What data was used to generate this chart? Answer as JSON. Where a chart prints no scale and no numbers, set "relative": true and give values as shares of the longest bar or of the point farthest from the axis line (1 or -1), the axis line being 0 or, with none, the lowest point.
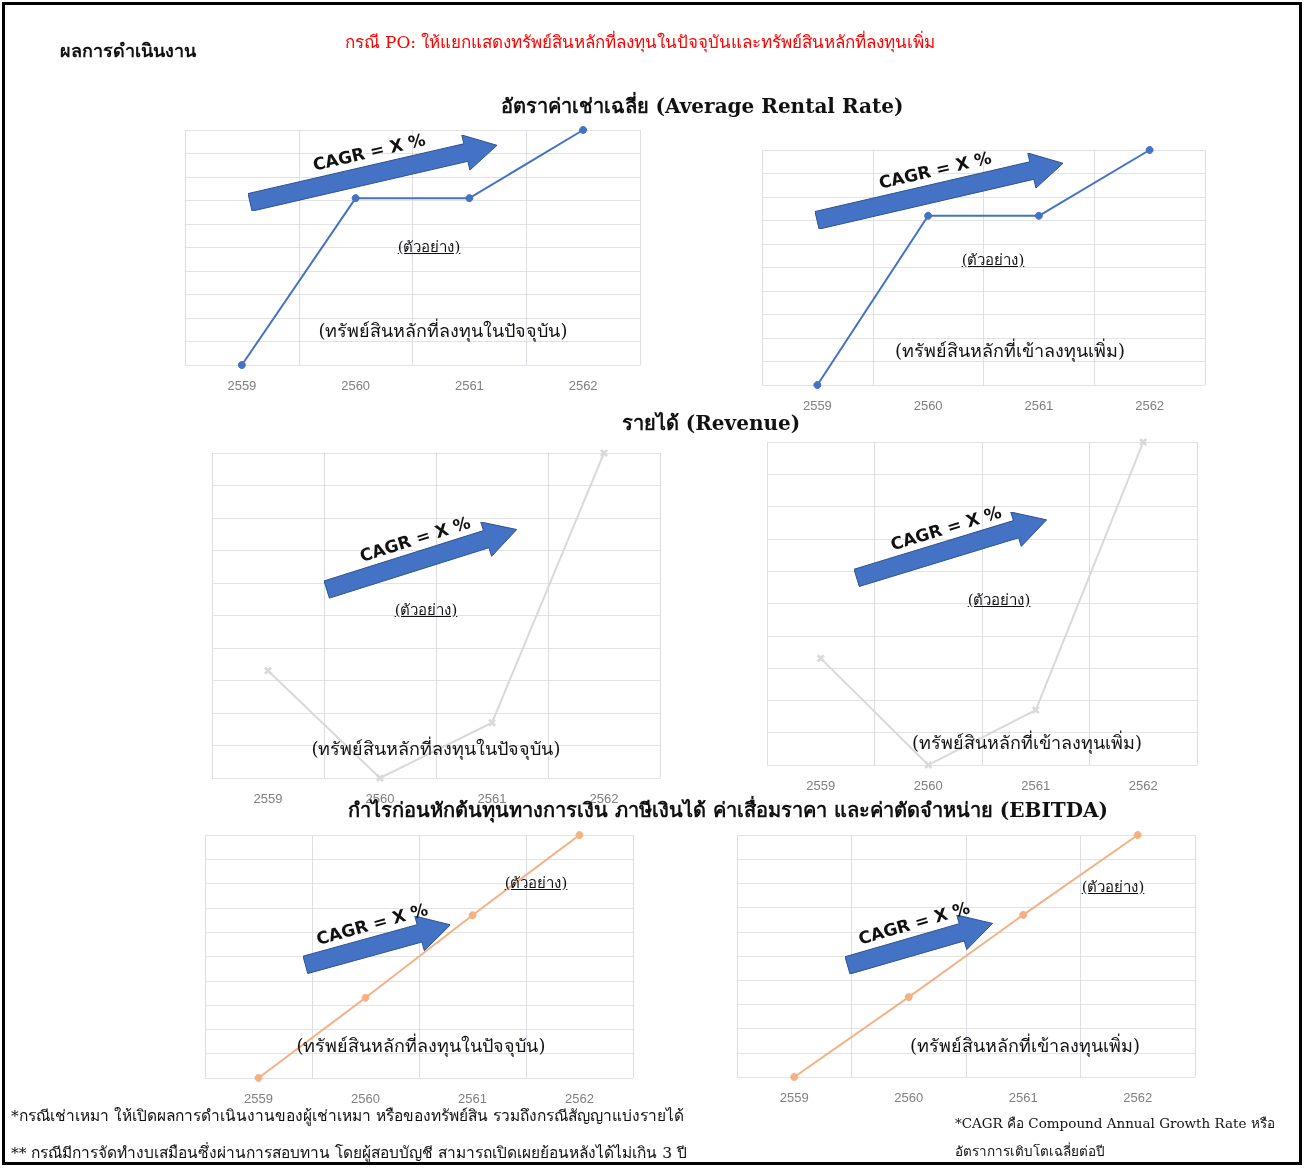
{
  "chart_data": [
    {
      "type": "line",
      "title": "อัตราค่าเช่าเฉลี่ย (Average Rental Rate)",
      "categories": [
        "2559",
        "2560",
        "2561",
        "2562"
      ],
      "relative": true,
      "grid": true,
      "marker": "circle",
      "series": [
        {
          "color": "#4472c4",
          "values": [
            0,
            0.71,
            0.71,
            1
          ]
        }
      ],
      "annotations": [
        "CAGR = X %",
        "(ตัวอย่าง)",
        "(ทรัพย์สินหลักที่ลงทุนในปัจจุบัน)",
        "ผลการดำเนินงาน",
        "กรณี PO: ให้แยกแสดงทรัพย์สินหลักที่ลงทุนในปัจจุบันและทรัพย์สินหลักที่ลงทุนเพิ่ม"
      ]
    },
    {
      "type": "line",
      "categories": [
        "2559",
        "2560",
        "2561",
        "2562"
      ],
      "relative": true,
      "grid": true,
      "marker": "circle",
      "series": [
        {
          "color": "#4472c4",
          "values": [
            0,
            0.72,
            0.72,
            1
          ]
        }
      ],
      "annotations": [
        "CAGR = X %",
        "(ตัวอย่าง)",
        "(ทรัพย์สินหลักที่เข้าลงทุนเพิ่ม)"
      ]
    },
    {
      "type": "line",
      "title": "รายได้ (Revenue)",
      "categories": [
        "2559",
        "2560",
        "2561",
        "2562"
      ],
      "relative": true,
      "grid": true,
      "marker": "cross",
      "series": [
        {
          "color": "#d9d9d9",
          "values": [
            0.33,
            0,
            0.17,
            1
          ]
        }
      ],
      "annotations": [
        "CAGR = X %",
        "(ตัวอย่าง)",
        "(ทรัพย์สินหลักที่ลงทุนในปัจจุบัน)"
      ]
    },
    {
      "type": "line",
      "categories": [
        "2559",
        "2560",
        "2561",
        "2562"
      ],
      "relative": true,
      "grid": true,
      "marker": "cross",
      "series": [
        {
          "color": "#d9d9d9",
          "values": [
            0.33,
            0,
            0.17,
            1
          ]
        }
      ],
      "annotations": [
        "CAGR = X %",
        "(ตัวอย่าง)",
        "(ทรัพย์สินหลักที่เข้าลงทุนเพิ่ม)"
      ]
    },
    {
      "type": "line",
      "title": "กำไรก่อนหักต้นทุนทางการเงิน ภาษีเงินได้ ค่าเสื่อมราคา และค่าตัดจำหน่าย (EBITDA)",
      "categories": [
        "2559",
        "2560",
        "2561",
        "2562"
      ],
      "relative": true,
      "grid": true,
      "marker": "circle",
      "series": [
        {
          "color": "#f4b183",
          "values": [
            0,
            0.33,
            0.67,
            1
          ]
        }
      ],
      "annotations": [
        "CAGR = X %",
        "(ตัวอย่าง)",
        "(ทรัพย์สินหลักที่ลงทุนในปัจจุบัน)",
        "*กรณีเช่าเหมา ให้เปิดผลการดำเนินงานของผู้เช่าเหมา หรือของทรัพย์สิน รวมถึงกรณีสัญญาแบ่งรายได้",
        "** กรณีมีการจัดทำงบเสมือนซึ่งผ่านการสอบทาน โดยผู้สอบบัญชี สามารถเปิดเผยย้อนหลังได้ไม่เกิน 3 ปี"
      ]
    },
    {
      "type": "line",
      "categories": [
        "2559",
        "2560",
        "2561",
        "2562"
      ],
      "relative": true,
      "grid": true,
      "marker": "circle",
      "series": [
        {
          "color": "#f4b183",
          "values": [
            0,
            0.33,
            0.67,
            1
          ]
        }
      ],
      "annotations": [
        "CAGR = X %",
        "(ตัวอย่าง)",
        "(ทรัพย์สินหลักที่เข้าลงทุนเพิ่ม)",
        "*CAGR คือ Compound Annual Growth Rate หรือ อัตราการเติบโตเฉลี่ยต่อปี"
      ]
    }
  ]
}
